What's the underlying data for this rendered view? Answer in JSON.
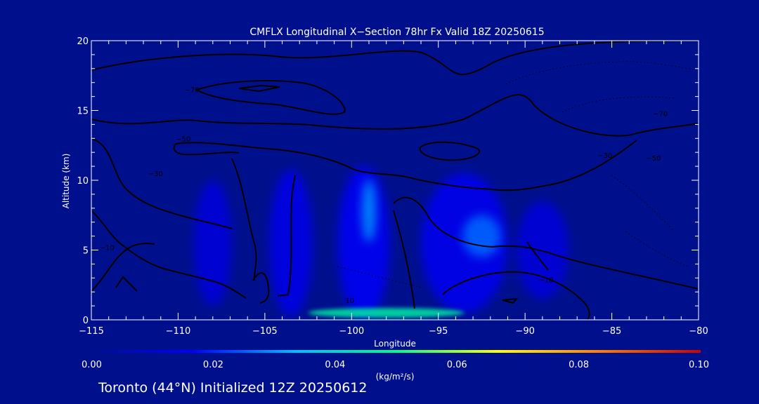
{
  "chart_data": {
    "type": "heatmap",
    "title": "CMFLX Longitudinal X−Section 78hr  Fx Valid 18Z 20250615",
    "xlabel": "Longitude",
    "ylabel": "Altitude (km)",
    "xlim": [
      -115,
      -80
    ],
    "ylim": [
      0,
      20
    ],
    "x_ticks": [
      -115,
      -110,
      -105,
      -100,
      -95,
      -90,
      -85,
      -80
    ],
    "x_tick_labels": [
      "−115",
      "−110",
      "−105",
      "−100",
      "−95",
      "−90",
      "−85",
      "−80"
    ],
    "y_ticks": [
      0,
      5,
      10,
      15,
      20
    ],
    "y_tick_labels": [
      "0",
      "5",
      "10",
      "15",
      "20"
    ],
    "colorbar": {
      "min": 0.0,
      "max": 0.1,
      "unit": "(kg/m²/s)",
      "ticks": [
        0.0,
        0.02,
        0.04,
        0.06,
        0.08,
        0.1
      ],
      "tick_labels": [
        "0.00",
        "0.02",
        "0.04",
        "0.06",
        "0.08",
        "0.10"
      ],
      "colors": [
        "#00108c",
        "#0000ff",
        "#00bfff",
        "#00ff7f",
        "#ffff00",
        "#ff7f00",
        "#cc0000"
      ]
    },
    "contour_labels": [
      {
        "text": "−70",
        "lon": -109.2,
        "alt": 16.3
      },
      {
        "text": "−50",
        "lon": -109.7,
        "alt": 12.8
      },
      {
        "text": "−30",
        "lon": -111.3,
        "alt": 10.3
      },
      {
        "text": "−10",
        "lon": -114.1,
        "alt": 5.0
      },
      {
        "text": "10",
        "lon": -100.1,
        "alt": 1.2
      },
      {
        "text": "−10",
        "lon": -88.8,
        "alt": 2.7
      },
      {
        "text": "−70",
        "lon": -82.2,
        "alt": 14.6
      },
      {
        "text": "−50",
        "lon": -82.6,
        "alt": 11.4
      },
      {
        "text": "−30",
        "lon": -85.4,
        "alt": 11.6
      }
    ],
    "flux_regions": [
      {
        "lon": -108,
        "alt": 5.5,
        "w_lon": 2.2,
        "h_alt": 9.0,
        "value": 0.012
      },
      {
        "lon": -103.5,
        "alt": 5.5,
        "w_lon": 2.5,
        "h_alt": 10.5,
        "value": 0.014
      },
      {
        "lon": -99.3,
        "alt": 5.5,
        "w_lon": 3.0,
        "h_alt": 11.0,
        "value": 0.016
      },
      {
        "lon": -99.0,
        "alt": 7.8,
        "w_lon": 0.8,
        "h_alt": 4.5,
        "value": 0.03
      },
      {
        "lon": -93.5,
        "alt": 5.5,
        "w_lon": 5.0,
        "h_alt": 10.0,
        "value": 0.015
      },
      {
        "lon": -92.5,
        "alt": 6.0,
        "w_lon": 2.2,
        "h_alt": 3.0,
        "value": 0.026
      },
      {
        "lon": -89.0,
        "alt": 5.0,
        "w_lon": 3.0,
        "h_alt": 7.0,
        "value": 0.012
      },
      {
        "lon": -98.0,
        "alt": 0.5,
        "w_lon": 9.0,
        "h_alt": 0.7,
        "value": 0.045
      }
    ],
    "grid": false
  },
  "footer": "Toronto (44°N) Initialized 12Z 20250612"
}
